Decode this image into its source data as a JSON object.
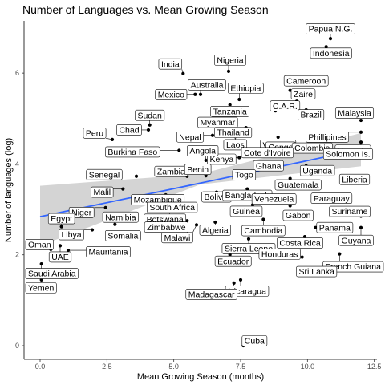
{
  "chart_data": {
    "type": "scatter",
    "title": "Number of Languages vs. Mean Growing Season",
    "xlabel": "Mean Growing Season (months)",
    "ylabel": "Number of languages (log)",
    "xlim": [
      -0.6,
      12.6
    ],
    "ylim": [
      -0.3,
      7.15
    ],
    "x_ticks": [
      "0.0",
      "2.5",
      "5.0",
      "7.5",
      "10.0",
      "12.5"
    ],
    "x_tick_values": [
      0,
      2.5,
      5,
      7.5,
      10,
      12.5
    ],
    "y_ticks": [
      "0",
      "2",
      "4",
      "6"
    ],
    "y_tick_values": [
      0,
      2,
      4,
      6
    ],
    "grid": false,
    "fit": {
      "method": "linear",
      "line": [
        [
          0,
          2.84
        ],
        [
          12,
          4.32
        ]
      ],
      "band_upper": [
        [
          0,
          3.52
        ],
        [
          6,
          3.78
        ],
        [
          12,
          4.68
        ]
      ],
      "band_lower": [
        [
          0,
          2.2
        ],
        [
          6,
          3.55
        ],
        [
          12,
          3.95
        ]
      ],
      "line_color": "#3366ff",
      "band_color": "#cccccc"
    },
    "points": [
      {
        "label": "Papua N.G.",
        "x": 10.86,
        "y": 6.76
      },
      {
        "label": "Indonesia",
        "x": 10.7,
        "y": 6.58
      },
      {
        "label": "India",
        "x": 5.35,
        "y": 5.99
      },
      {
        "label": "Nigeria",
        "x": 7.05,
        "y": 6.04
      },
      {
        "label": "Cameroon",
        "x": 9.35,
        "y": 5.62
      },
      {
        "label": "Australia",
        "x": 6.0,
        "y": 5.53
      },
      {
        "label": "Ethiopia",
        "x": 7.45,
        "y": 5.42
      },
      {
        "label": "Mexico",
        "x": 5.8,
        "y": 5.53
      },
      {
        "label": "Zaire",
        "x": 9.6,
        "y": 5.38
      },
      {
        "label": "Tanzania",
        "x": 7.1,
        "y": 5.3
      },
      {
        "label": "C.A.R.",
        "x": 8.8,
        "y": 5.17
      },
      {
        "label": "Brazil",
        "x": 9.95,
        "y": 5.19
      },
      {
        "label": "Malaysia",
        "x": 12.0,
        "y": 4.96
      },
      {
        "label": "Sudan",
        "x": 4.1,
        "y": 4.86
      },
      {
        "label": "Myanmar",
        "x": 7.3,
        "y": 4.74
      },
      {
        "label": "Thailand",
        "x": 7.7,
        "y": 4.8
      },
      {
        "label": "Chad",
        "x": 4.05,
        "y": 4.75
      },
      {
        "label": "Peru",
        "x": 2.7,
        "y": 4.54
      },
      {
        "label": "Vietnam",
        "x": 8.9,
        "y": 4.59
      },
      {
        "label": "Phillipines",
        "x": 12.0,
        "y": 4.7
      },
      {
        "label": "Nepal",
        "x": 6.45,
        "y": 4.63
      },
      {
        "label": "Laos",
        "x": 7.3,
        "y": 4.6
      },
      {
        "label": "Congo",
        "x": 9.6,
        "y": 4.3
      },
      {
        "label": "Colombia",
        "x": 10.3,
        "y": 4.28
      },
      {
        "label": "Vanuatu",
        "x": 12.0,
        "y": 4.48
      },
      {
        "label": "Burkina Faso",
        "x": 5.2,
        "y": 4.3
      },
      {
        "label": "Cote d'Ivoire",
        "x": 8.2,
        "y": 4.25
      },
      {
        "label": "Kenya",
        "x": 7.45,
        "y": 4.14
      },
      {
        "label": "Angola",
        "x": 6.2,
        "y": 4.08
      },
      {
        "label": "Solomon Is.",
        "x": 12.0,
        "y": 4.22
      },
      {
        "label": "Ghana",
        "x": 8.9,
        "y": 3.96
      },
      {
        "label": "Uganda",
        "x": 9.95,
        "y": 3.96
      },
      {
        "label": "Senegal",
        "x": 3.6,
        "y": 3.73
      },
      {
        "label": "Zambia",
        "x": 5.5,
        "y": 3.73
      },
      {
        "label": "Benin",
        "x": 6.2,
        "y": 3.74
      },
      {
        "label": "Togo",
        "x": 7.45,
        "y": 3.76
      },
      {
        "label": "Guatemala",
        "x": 9.35,
        "y": 3.68
      },
      {
        "label": "Liberia",
        "x": 12.0,
        "y": 3.66
      },
      {
        "label": "Malil",
        "x": 3.1,
        "y": 3.45
      },
      {
        "label": "Mozambique",
        "x": 4.7,
        "y": 3.32
      },
      {
        "label": "South Africa",
        "x": 5.3,
        "y": 3.22
      },
      {
        "label": "Bolivia",
        "x": 6.6,
        "y": 3.38
      },
      {
        "label": "Bangladesh",
        "x": 7.75,
        "y": 3.45
      },
      {
        "label": "Venezuela",
        "x": 8.45,
        "y": 3.3
      },
      {
        "label": "Paraguay",
        "x": 10.3,
        "y": 3.28
      },
      {
        "label": "Niger",
        "x": 2.45,
        "y": 3.04
      },
      {
        "label": "Botswana",
        "x": 4.85,
        "y": 2.96
      },
      {
        "label": "Guinea",
        "x": 7.95,
        "y": 3.1
      },
      {
        "label": "Gabon",
        "x": 9.35,
        "y": 3.08
      },
      {
        "label": "Suriname",
        "x": 12.0,
        "y": 2.85
      },
      {
        "label": "Egypt",
        "x": 0.8,
        "y": 2.62
      },
      {
        "label": "Namibia",
        "x": 3.25,
        "y": 2.76
      },
      {
        "label": "Zimbabwe",
        "x": 5.5,
        "y": 2.75
      },
      {
        "label": "Algeria",
        "x": 6.55,
        "y": 2.72
      },
      {
        "label": "Cambodia",
        "x": 8.35,
        "y": 2.78
      },
      {
        "label": "Panama",
        "x": 10.3,
        "y": 2.6
      },
      {
        "label": "Libya",
        "x": 1.95,
        "y": 2.55
      },
      {
        "label": "Somalia",
        "x": 2.8,
        "y": 2.67
      },
      {
        "label": "Malawi",
        "x": 5.85,
        "y": 2.66
      },
      {
        "label": "Guyana",
        "x": 12.0,
        "y": 2.6
      },
      {
        "label": "Oman",
        "x": 0.4,
        "y": 2.12
      },
      {
        "label": "UAE",
        "x": 0.75,
        "y": 2.2
      },
      {
        "label": "Sierra Leone",
        "x": 7.8,
        "y": 2.35
      },
      {
        "label": "Costa Rica",
        "x": 9.9,
        "y": 2.4
      },
      {
        "label": "Mauritania",
        "x": 1.05,
        "y": 2.1
      },
      {
        "label": "Saudi Arabia",
        "x": 0.05,
        "y": 1.8
      },
      {
        "label": "Ecuador",
        "x": 7.1,
        "y": 2.0
      },
      {
        "label": "Honduras",
        "x": 8.3,
        "y": 2.05
      },
      {
        "label": "French Guiana",
        "x": 11.2,
        "y": 2.02
      },
      {
        "label": "Sri Lanka",
        "x": 9.8,
        "y": 1.95
      },
      {
        "label": "Yemen",
        "x": 0.05,
        "y": 1.45
      },
      {
        "label": "Nicaragua",
        "x": 7.5,
        "y": 1.45
      },
      {
        "label": "Madagascar",
        "x": 7.25,
        "y": 1.38
      },
      {
        "label": "Cuba",
        "x": 7.6,
        "y": 0.0
      }
    ]
  }
}
